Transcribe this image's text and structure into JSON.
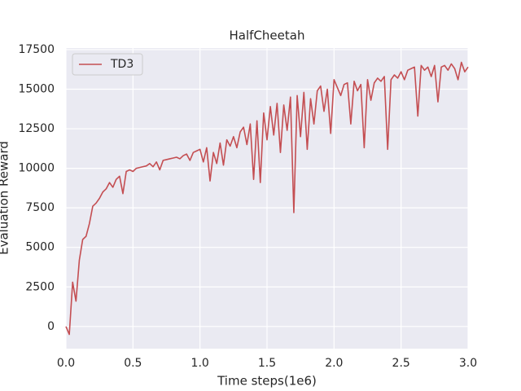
{
  "chart_data": {
    "type": "line",
    "title": "HalfCheetah",
    "x_label": "Time steps(1e6)",
    "y_label": "Evaluation Reward",
    "x": [
      0,
      0.025,
      0.05,
      0.075,
      0.1,
      0.125,
      0.15,
      0.175,
      0.2,
      0.225,
      0.25,
      0.275,
      0.3,
      0.325,
      0.35,
      0.375,
      0.4,
      0.425,
      0.45,
      0.475,
      0.5,
      0.525,
      0.55,
      0.575,
      0.6,
      0.625,
      0.65,
      0.675,
      0.7,
      0.725,
      0.75,
      0.775,
      0.8,
      0.825,
      0.85,
      0.875,
      0.9,
      0.925,
      0.95,
      0.975,
      1,
      1.025,
      1.05,
      1.075,
      1.1,
      1.125,
      1.15,
      1.175,
      1.2,
      1.225,
      1.25,
      1.275,
      1.3,
      1.325,
      1.35,
      1.375,
      1.4,
      1.425,
      1.45,
      1.475,
      1.5,
      1.525,
      1.55,
      1.575,
      1.6,
      1.625,
      1.65,
      1.675,
      1.7,
      1.725,
      1.75,
      1.775,
      1.8,
      1.825,
      1.85,
      1.875,
      1.9,
      1.925,
      1.95,
      1.975,
      2,
      2.025,
      2.05,
      2.075,
      2.1,
      2.125,
      2.15,
      2.175,
      2.2,
      2.225,
      2.25,
      2.275,
      2.3,
      2.325,
      2.35,
      2.375,
      2.4,
      2.425,
      2.45,
      2.475,
      2.5,
      2.525,
      2.55,
      2.575,
      2.6,
      2.625,
      2.65,
      2.675,
      2.7,
      2.725,
      2.75,
      2.775,
      2.8,
      2.825,
      2.85,
      2.875,
      2.9,
      2.925,
      2.95,
      2.975,
      3
    ],
    "series": [
      {
        "name": "TD3",
        "color": "#c44e52",
        "values": [
          0,
          -500,
          2800,
          1600,
          4200,
          5500,
          5700,
          6500,
          7600,
          7800,
          8100,
          8500,
          8700,
          9100,
          8800,
          9300,
          9500,
          8400,
          9800,
          9900,
          9800,
          10000,
          10050,
          10100,
          10150,
          10300,
          10100,
          10400,
          9900,
          10500,
          10550,
          10600,
          10650,
          10700,
          10600,
          10800,
          10900,
          10500,
          11000,
          11100,
          11200,
          10400,
          11300,
          9200,
          11000,
          10300,
          11600,
          10200,
          11800,
          11400,
          12000,
          11300,
          12300,
          12600,
          11500,
          12800,
          9300,
          13000,
          9100,
          13500,
          11800,
          13900,
          12100,
          14100,
          11000,
          14000,
          12400,
          14500,
          7200,
          14600,
          12000,
          14800,
          11200,
          14400,
          12800,
          14900,
          15200,
          13600,
          15000,
          12200,
          15600,
          15100,
          14600,
          15300,
          15400,
          12800,
          15500,
          14900,
          15300,
          11300,
          15600,
          14300,
          15400,
          15700,
          15500,
          15800,
          11200,
          15600,
          15900,
          15700,
          16100,
          15600,
          16200,
          16300,
          16400,
          13300,
          16500,
          16200,
          16400,
          15800,
          16500,
          14200,
          16400,
          16500,
          16200,
          16600,
          16300,
          15600,
          16700,
          16100,
          16400
        ]
      }
    ],
    "xlim": [
      0,
      3
    ],
    "xticks": [
      {
        "value": 0,
        "label": "0.0"
      },
      0.5,
      {
        "value": 1,
        "label": "1.0"
      },
      1.5,
      {
        "value": 2,
        "label": "2.0"
      },
      2.5,
      {
        "value": 3,
        "label": "3.0"
      }
    ],
    "ylim": [
      -1400,
      17600
    ],
    "yticks": [
      0,
      2500,
      5000,
      7500,
      10000,
      12500,
      15000,
      17500
    ],
    "grid": true,
    "legend": "upper left"
  }
}
